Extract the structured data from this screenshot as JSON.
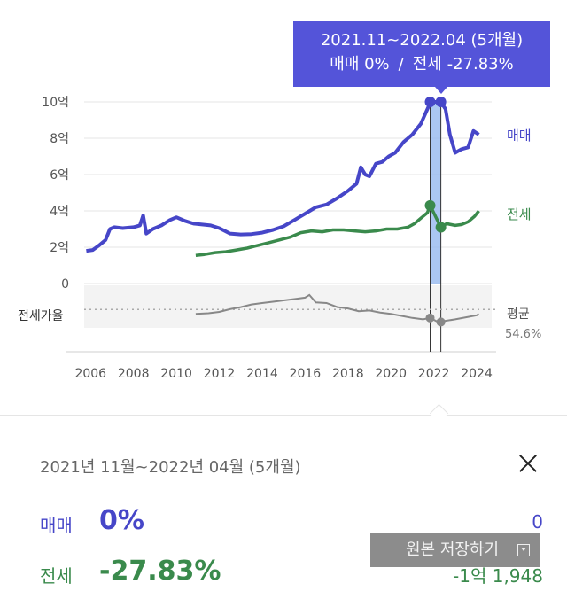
{
  "tooltip": {
    "period": "2021.11~2022.04 (5개월)",
    "sale_text": "매매 0%",
    "sep": "/",
    "rent_text": "전세 -27.83%"
  },
  "detail": {
    "period": "2021년 11월~2022년 04월 (5개월)",
    "sale_label": "매매",
    "sale_value": "0%",
    "sale_right": "0",
    "rent_label": "전세",
    "rent_value": "-27.83%",
    "rent_right": "-1억 1,948",
    "save_button": "원본 저장하기"
  },
  "colors": {
    "sale": "#4646c8",
    "rent": "#3a8a4c",
    "ratio": "#888888",
    "tooltip_bg": "#5454d9"
  },
  "chart_data": {
    "type": "line",
    "x_ticks": [
      "2006",
      "2008",
      "2010",
      "2012",
      "2014",
      "2016",
      "2018",
      "2020",
      "2022",
      "2024"
    ],
    "xlim": [
      2005.7,
      2024.7
    ],
    "y_ticks": [
      "10억",
      "8억",
      "6억",
      "4억",
      "2억",
      "0"
    ],
    "y_tick_values": [
      10,
      8,
      6,
      4,
      2,
      0
    ],
    "ylim": [
      0,
      10
    ],
    "ratio_label": "전세가율",
    "ratio_avg_label": "평균",
    "ratio_avg_value": "54.6%",
    "ratio_avg": 54.6,
    "ratio_ylim": [
      30,
      85
    ],
    "highlight": {
      "start": 2021.83,
      "end": 2022.33
    },
    "series": [
      {
        "name": "매매",
        "points": [
          [
            2005.8,
            1.8
          ],
          [
            2006.1,
            1.85
          ],
          [
            2006.4,
            2.1
          ],
          [
            2006.7,
            2.4
          ],
          [
            2006.9,
            3.0
          ],
          [
            2007.1,
            3.1
          ],
          [
            2007.5,
            3.05
          ],
          [
            2008.0,
            3.1
          ],
          [
            2008.3,
            3.2
          ],
          [
            2008.45,
            3.75
          ],
          [
            2008.6,
            2.75
          ],
          [
            2008.9,
            3.0
          ],
          [
            2009.3,
            3.2
          ],
          [
            2009.7,
            3.5
          ],
          [
            2010.0,
            3.65
          ],
          [
            2010.4,
            3.45
          ],
          [
            2010.8,
            3.3
          ],
          [
            2011.2,
            3.25
          ],
          [
            2011.6,
            3.2
          ],
          [
            2012.0,
            3.05
          ],
          [
            2012.5,
            2.75
          ],
          [
            2013.0,
            2.7
          ],
          [
            2013.5,
            2.72
          ],
          [
            2014.0,
            2.8
          ],
          [
            2014.5,
            2.95
          ],
          [
            2015.0,
            3.15
          ],
          [
            2015.5,
            3.5
          ],
          [
            2016.0,
            3.85
          ],
          [
            2016.5,
            4.2
          ],
          [
            2017.0,
            4.35
          ],
          [
            2017.5,
            4.7
          ],
          [
            2018.0,
            5.1
          ],
          [
            2018.4,
            5.5
          ],
          [
            2018.6,
            6.4
          ],
          [
            2018.8,
            6.0
          ],
          [
            2019.0,
            5.9
          ],
          [
            2019.3,
            6.6
          ],
          [
            2019.6,
            6.7
          ],
          [
            2019.9,
            7.0
          ],
          [
            2020.2,
            7.2
          ],
          [
            2020.6,
            7.8
          ],
          [
            2021.0,
            8.2
          ],
          [
            2021.4,
            8.8
          ],
          [
            2021.7,
            9.6
          ],
          [
            2021.85,
            10.0
          ],
          [
            2022.0,
            10.0
          ],
          [
            2022.2,
            10.0
          ],
          [
            2022.33,
            10.0
          ],
          [
            2022.55,
            9.6
          ],
          [
            2022.75,
            8.2
          ],
          [
            2023.0,
            7.2
          ],
          [
            2023.3,
            7.4
          ],
          [
            2023.6,
            7.5
          ],
          [
            2023.85,
            8.4
          ],
          [
            2024.1,
            8.2
          ]
        ]
      },
      {
        "name": "전세",
        "points": [
          [
            2010.9,
            1.55
          ],
          [
            2011.3,
            1.6
          ],
          [
            2011.8,
            1.7
          ],
          [
            2012.3,
            1.75
          ],
          [
            2012.8,
            1.85
          ],
          [
            2013.3,
            1.95
          ],
          [
            2013.8,
            2.1
          ],
          [
            2014.3,
            2.25
          ],
          [
            2014.8,
            2.4
          ],
          [
            2015.3,
            2.55
          ],
          [
            2015.8,
            2.8
          ],
          [
            2016.3,
            2.9
          ],
          [
            2016.8,
            2.85
          ],
          [
            2017.3,
            2.95
          ],
          [
            2017.8,
            2.95
          ],
          [
            2018.3,
            2.9
          ],
          [
            2018.8,
            2.85
          ],
          [
            2019.3,
            2.9
          ],
          [
            2019.8,
            3.0
          ],
          [
            2020.3,
            3.0
          ],
          [
            2020.8,
            3.1
          ],
          [
            2021.1,
            3.3
          ],
          [
            2021.4,
            3.6
          ],
          [
            2021.7,
            3.9
          ],
          [
            2021.83,
            4.3
          ],
          [
            2022.0,
            3.9
          ],
          [
            2022.2,
            3.4
          ],
          [
            2022.33,
            3.1
          ],
          [
            2022.6,
            3.3
          ],
          [
            2023.0,
            3.2
          ],
          [
            2023.3,
            3.25
          ],
          [
            2023.6,
            3.4
          ],
          [
            2023.9,
            3.7
          ],
          [
            2024.1,
            4.0
          ]
        ]
      },
      {
        "name": "전세가율",
        "points": [
          [
            2010.9,
            48
          ],
          [
            2011.5,
            49
          ],
          [
            2012.0,
            51
          ],
          [
            2012.5,
            55
          ],
          [
            2013.0,
            58
          ],
          [
            2013.5,
            62
          ],
          [
            2014.0,
            64
          ],
          [
            2014.5,
            66
          ],
          [
            2015.0,
            68
          ],
          [
            2015.5,
            70
          ],
          [
            2016.0,
            72
          ],
          [
            2016.2,
            76
          ],
          [
            2016.5,
            65
          ],
          [
            2017.0,
            64
          ],
          [
            2017.5,
            58
          ],
          [
            2018.0,
            56
          ],
          [
            2018.5,
            52
          ],
          [
            2019.0,
            53
          ],
          [
            2019.5,
            50
          ],
          [
            2020.0,
            48
          ],
          [
            2020.5,
            45
          ],
          [
            2021.0,
            42
          ],
          [
            2021.5,
            40
          ],
          [
            2021.83,
            42
          ],
          [
            2022.2,
            36
          ],
          [
            2022.6,
            38
          ],
          [
            2023.0,
            40
          ],
          [
            2023.5,
            43
          ],
          [
            2024.0,
            46
          ],
          [
            2024.1,
            48
          ]
        ]
      }
    ]
  }
}
